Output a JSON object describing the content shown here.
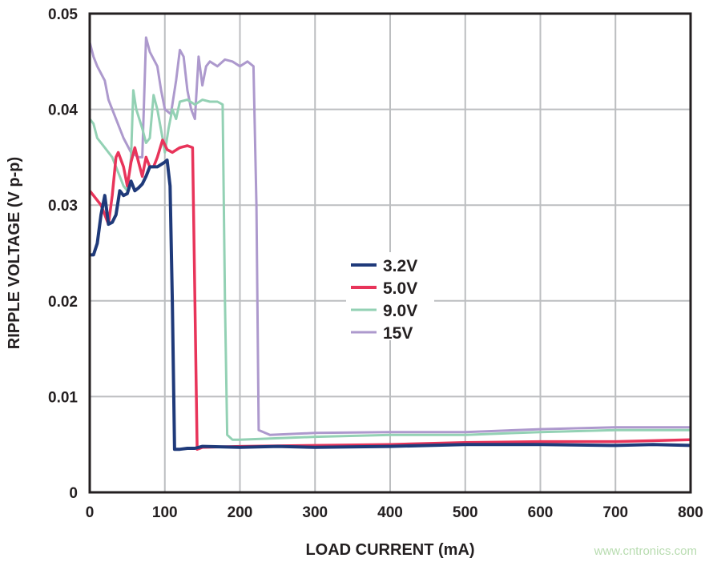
{
  "chart_data": {
    "type": "line",
    "xlabel": "LOAD CURRENT (mA)",
    "ylabel": "RIPPLE VOLTAGE (V p-p)",
    "xlim": [
      0,
      800
    ],
    "ylim": [
      0,
      0.05
    ],
    "xticks": [
      "0",
      "100",
      "200",
      "300",
      "400",
      "500",
      "600",
      "700",
      "800"
    ],
    "yticks": [
      "0",
      "0.01",
      "0.02",
      "0.03",
      "0.04",
      "0.05"
    ],
    "grid": true,
    "legend_position": "center",
    "series": [
      {
        "name": "3.2V",
        "color": "#1f3a7a",
        "points": [
          [
            0,
            0.0248
          ],
          [
            5,
            0.0248
          ],
          [
            10,
            0.026
          ],
          [
            15,
            0.029
          ],
          [
            20,
            0.031
          ],
          [
            25,
            0.028
          ],
          [
            30,
            0.0282
          ],
          [
            35,
            0.029
          ],
          [
            40,
            0.0315
          ],
          [
            45,
            0.031
          ],
          [
            50,
            0.0312
          ],
          [
            55,
            0.0325
          ],
          [
            60,
            0.0315
          ],
          [
            65,
            0.0318
          ],
          [
            70,
            0.0322
          ],
          [
            75,
            0.033
          ],
          [
            80,
            0.034
          ],
          [
            90,
            0.034
          ],
          [
            100,
            0.0345
          ],
          [
            103,
            0.0347
          ],
          [
            107,
            0.032
          ],
          [
            110,
            0.02
          ],
          [
            113,
            0.0045
          ],
          [
            120,
            0.0045
          ],
          [
            130,
            0.0046
          ],
          [
            140,
            0.0046
          ],
          [
            150,
            0.0048
          ],
          [
            200,
            0.0047
          ],
          [
            250,
            0.0048
          ],
          [
            300,
            0.0047
          ],
          [
            400,
            0.0048
          ],
          [
            500,
            0.005
          ],
          [
            600,
            0.005
          ],
          [
            700,
            0.0049
          ],
          [
            750,
            0.005
          ],
          [
            800,
            0.0049
          ]
        ]
      },
      {
        "name": "5.0V",
        "color": "#e8345a",
        "points": [
          [
            0,
            0.0315
          ],
          [
            5,
            0.031
          ],
          [
            10,
            0.0305
          ],
          [
            15,
            0.03
          ],
          [
            20,
            0.029
          ],
          [
            25,
            0.028
          ],
          [
            30,
            0.031
          ],
          [
            35,
            0.035
          ],
          [
            38,
            0.0355
          ],
          [
            45,
            0.034
          ],
          [
            50,
            0.032
          ],
          [
            55,
            0.0345
          ],
          [
            60,
            0.036
          ],
          [
            65,
            0.0345
          ],
          [
            70,
            0.033
          ],
          [
            75,
            0.035
          ],
          [
            80,
            0.034
          ],
          [
            85,
            0.034
          ],
          [
            90,
            0.035
          ],
          [
            97,
            0.0368
          ],
          [
            103,
            0.0358
          ],
          [
            110,
            0.0355
          ],
          [
            120,
            0.036
          ],
          [
            130,
            0.0362
          ],
          [
            137,
            0.036
          ],
          [
            140,
            0.02
          ],
          [
            143,
            0.0045
          ],
          [
            150,
            0.0047
          ],
          [
            200,
            0.0048
          ],
          [
            300,
            0.0049
          ],
          [
            400,
            0.005
          ],
          [
            500,
            0.0052
          ],
          [
            600,
            0.0053
          ],
          [
            700,
            0.0053
          ],
          [
            800,
            0.0055
          ]
        ]
      },
      {
        "name": "9.0V",
        "color": "#93d1b4",
        "points": [
          [
            0,
            0.039
          ],
          [
            5,
            0.0385
          ],
          [
            10,
            0.037
          ],
          [
            20,
            0.036
          ],
          [
            30,
            0.035
          ],
          [
            40,
            0.033
          ],
          [
            45,
            0.032
          ],
          [
            50,
            0.0315
          ],
          [
            55,
            0.035
          ],
          [
            58,
            0.042
          ],
          [
            62,
            0.04
          ],
          [
            70,
            0.038
          ],
          [
            75,
            0.0365
          ],
          [
            80,
            0.037
          ],
          [
            85,
            0.0415
          ],
          [
            90,
            0.04
          ],
          [
            97,
            0.037
          ],
          [
            100,
            0.0355
          ],
          [
            105,
            0.038
          ],
          [
            110,
            0.04
          ],
          [
            115,
            0.039
          ],
          [
            120,
            0.0408
          ],
          [
            130,
            0.041
          ],
          [
            140,
            0.0405
          ],
          [
            150,
            0.041
          ],
          [
            160,
            0.0408
          ],
          [
            170,
            0.0408
          ],
          [
            177,
            0.0405
          ],
          [
            180,
            0.02
          ],
          [
            183,
            0.006
          ],
          [
            190,
            0.0055
          ],
          [
            200,
            0.0055
          ],
          [
            300,
            0.0058
          ],
          [
            400,
            0.006
          ],
          [
            500,
            0.006
          ],
          [
            600,
            0.0063
          ],
          [
            700,
            0.0065
          ],
          [
            800,
            0.0065
          ]
        ]
      },
      {
        "name": "15V",
        "color": "#ad99cd",
        "points": [
          [
            0,
            0.047
          ],
          [
            5,
            0.0455
          ],
          [
            10,
            0.0445
          ],
          [
            20,
            0.043
          ],
          [
            25,
            0.041
          ],
          [
            35,
            0.039
          ],
          [
            45,
            0.037
          ],
          [
            55,
            0.0355
          ],
          [
            65,
            0.035
          ],
          [
            70,
            0.035
          ],
          [
            75,
            0.0475
          ],
          [
            80,
            0.046
          ],
          [
            90,
            0.0445
          ],
          [
            95,
            0.042
          ],
          [
            100,
            0.04
          ],
          [
            108,
            0.0395
          ],
          [
            115,
            0.043
          ],
          [
            120,
            0.0462
          ],
          [
            125,
            0.0455
          ],
          [
            130,
            0.042
          ],
          [
            135,
            0.04
          ],
          [
            140,
            0.039
          ],
          [
            145,
            0.0455
          ],
          [
            150,
            0.0425
          ],
          [
            155,
            0.0445
          ],
          [
            160,
            0.045
          ],
          [
            170,
            0.0445
          ],
          [
            180,
            0.0452
          ],
          [
            190,
            0.045
          ],
          [
            200,
            0.0445
          ],
          [
            210,
            0.045
          ],
          [
            218,
            0.0445
          ],
          [
            222,
            0.03
          ],
          [
            225,
            0.0065
          ],
          [
            240,
            0.006
          ],
          [
            300,
            0.0062
          ],
          [
            400,
            0.0063
          ],
          [
            500,
            0.0063
          ],
          [
            600,
            0.0066
          ],
          [
            700,
            0.0068
          ],
          [
            800,
            0.0068
          ]
        ]
      }
    ]
  },
  "watermark": "www.cntronics.com"
}
